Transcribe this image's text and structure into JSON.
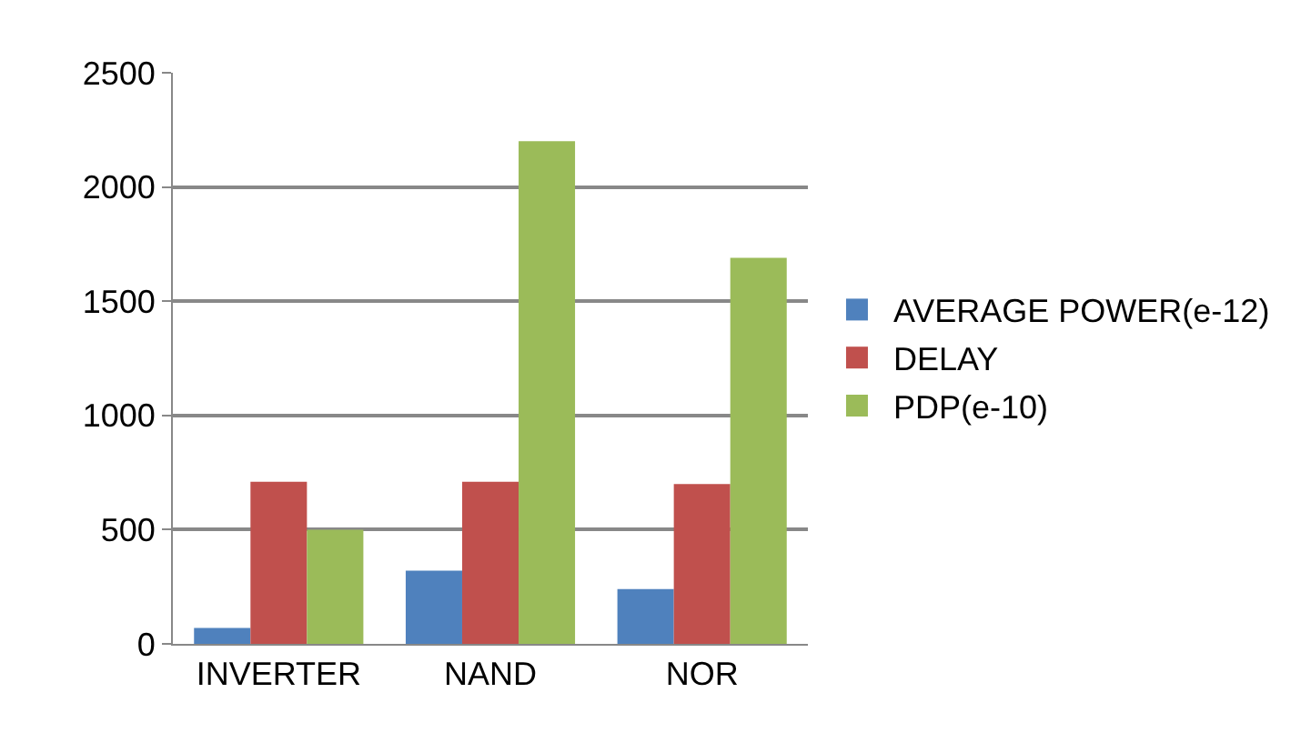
{
  "chart_data": {
    "type": "bar",
    "categories": [
      "INVERTER",
      "NAND",
      "NOR"
    ],
    "series": [
      {
        "name": "AVERAGE POWER(e-12)",
        "color": "#4f81bd",
        "values": [
          70,
          320,
          240
        ]
      },
      {
        "name": "DELAY",
        "color": "#c0504d",
        "values": [
          710,
          710,
          700
        ]
      },
      {
        "name": "PDP(e-10)",
        "color": "#9bbb59",
        "values": [
          500,
          2200,
          1690
        ]
      }
    ],
    "ylim": [
      0,
      2500
    ],
    "yticks": [
      0,
      500,
      1000,
      1500,
      2000,
      2500
    ],
    "grid": "y",
    "legend": "right"
  }
}
